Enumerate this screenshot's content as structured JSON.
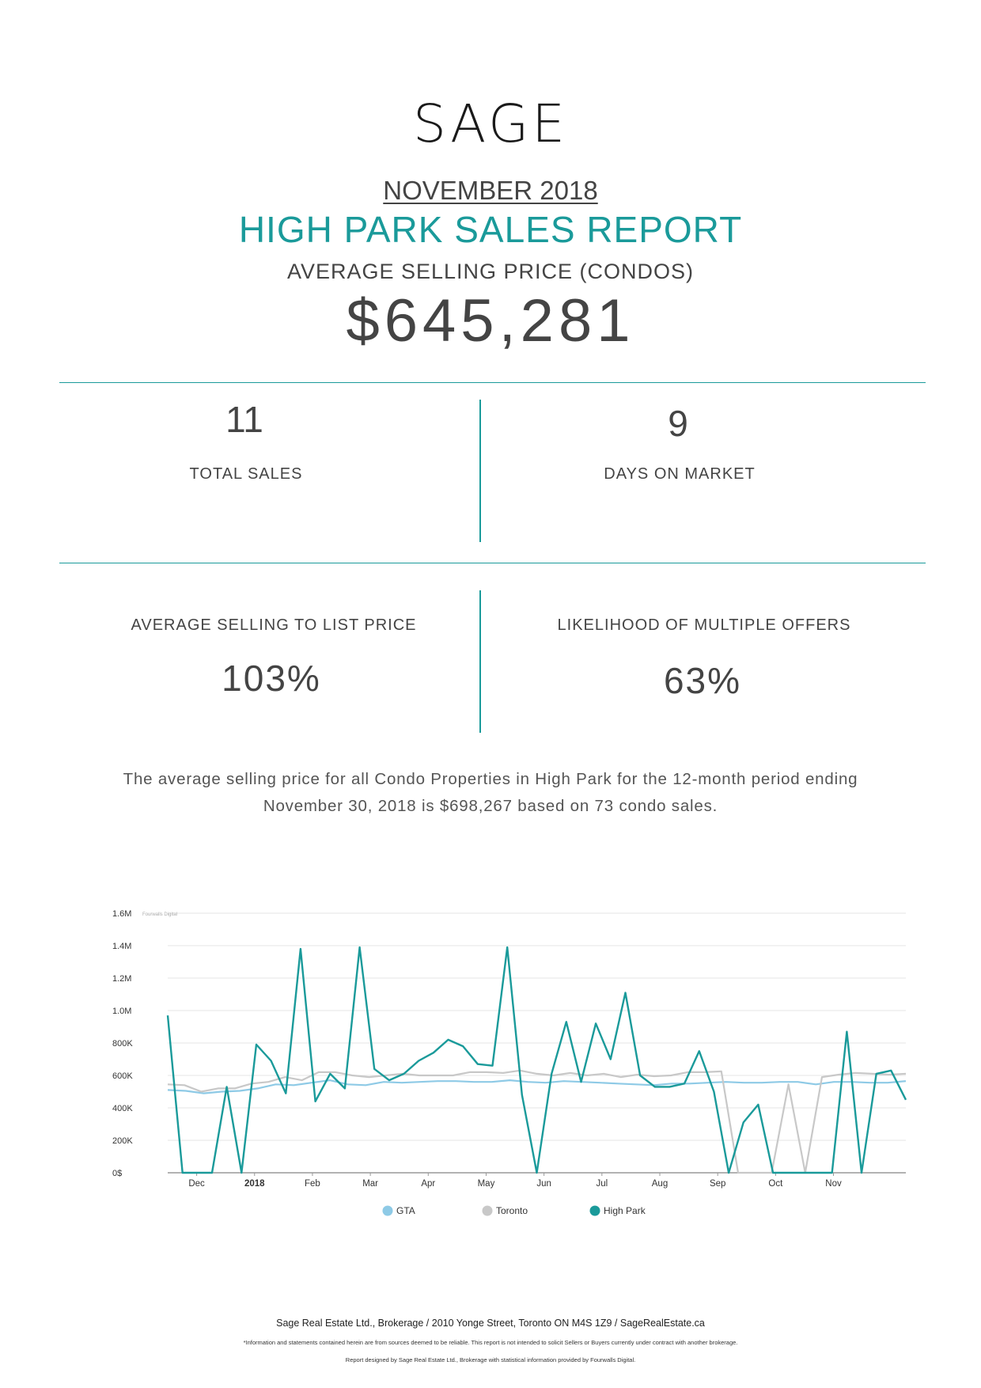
{
  "header": {
    "logo": "SAGE",
    "period": "NOVEMBER 2018",
    "title": "HIGH PARK SALES REPORT",
    "subtitle": "AVERAGE SELLING PRICE (CONDOS)",
    "avg_price": "$645,281"
  },
  "stats": {
    "total_sales": {
      "value": "11",
      "label": "TOTAL SALES"
    },
    "days_on_market": {
      "value": "9",
      "label": "DAYS ON MARKET"
    },
    "selling_to_list": {
      "value": "103%",
      "label": "AVERAGE SELLING TO LIST PRICE"
    },
    "multiple_offers": {
      "value": "63%",
      "label": "LIKELIHOOD OF MULTIPLE OFFERS"
    }
  },
  "summary": {
    "line1": "The average selling price for all Condo Properties in High Park for the 12-month period ending",
    "line2": "November 30, 2018 is $698,267 based on 73 condo sales."
  },
  "chart_data": {
    "type": "line",
    "watermark": "Fourwalls Digital",
    "y_ticks": [
      "0$",
      "200K",
      "400K",
      "600K",
      "800K",
      "1.0M",
      "1.2M",
      "1.4M",
      "1.6M"
    ],
    "ylim": [
      0,
      1600000
    ],
    "x_tick_labels": [
      "Dec",
      "2018",
      "Feb",
      "Mar",
      "Apr",
      "May",
      "Jun",
      "Jul",
      "Aug",
      "Sep",
      "Oct",
      "Nov"
    ],
    "x_tick_positions": [
      1,
      3,
      5,
      7,
      9,
      11,
      13,
      15,
      17,
      19,
      21,
      23
    ],
    "x_range": [
      0,
      25.5
    ],
    "legend_position": "bottom",
    "series": [
      {
        "name": "GTA",
        "color": "#8ecae6",
        "values": [
          510000,
          505000,
          490000,
          500000,
          505000,
          520000,
          545000,
          540000,
          555000,
          570000,
          545000,
          540000,
          560000,
          555000,
          560000,
          565000,
          565000,
          560000,
          560000,
          570000,
          560000,
          555000,
          565000,
          560000,
          555000,
          550000,
          545000,
          540000,
          550000,
          550000,
          555000,
          560000,
          555000,
          555000,
          560000,
          560000,
          545000,
          560000,
          560000,
          555000,
          555000,
          565000
        ]
      },
      {
        "name": "Toronto",
        "color": "#c8c8c8",
        "values": [
          545000,
          540000,
          500000,
          520000,
          520000,
          550000,
          560000,
          590000,
          570000,
          620000,
          620000,
          600000,
          590000,
          600000,
          610000,
          600000,
          600000,
          600000,
          620000,
          620000,
          615000,
          630000,
          610000,
          600000,
          615000,
          600000,
          610000,
          590000,
          605000,
          595000,
          600000,
          620000,
          620000,
          625000,
          0,
          0,
          0,
          545000,
          0,
          590000,
          605000,
          615000,
          610000,
          605000,
          610000
        ]
      },
      {
        "name": "High Park",
        "color": "#1a9a9a",
        "values": [
          970000,
          0,
          0,
          0,
          530000,
          0,
          790000,
          690000,
          490000,
          1380000,
          440000,
          610000,
          520000,
          1390000,
          640000,
          570000,
          610000,
          690000,
          740000,
          820000,
          780000,
          670000,
          660000,
          1390000,
          480000,
          0,
          610000,
          930000,
          560000,
          920000,
          700000,
          1110000,
          600000,
          530000,
          530000,
          550000,
          750000,
          500000,
          0,
          310000,
          420000,
          0,
          0,
          0,
          0,
          0,
          870000,
          0,
          610000,
          630000,
          450000
        ]
      }
    ]
  },
  "footer": {
    "line1": "Sage Real Estate Ltd., Brokerage / 2010 Yonge Street, Toronto ON M4S 1Z9 / SageRealEstate.ca",
    "line2": "*Information and statements contained herein are from sources deemed to be reliable. This report is not intended to solicit Sellers or Buyers currently under contract with another brokerage.",
    "line3": "Report designed by Sage Real Estate Ltd., Brokerage with statistical information provided by Fourwalls Digital."
  }
}
